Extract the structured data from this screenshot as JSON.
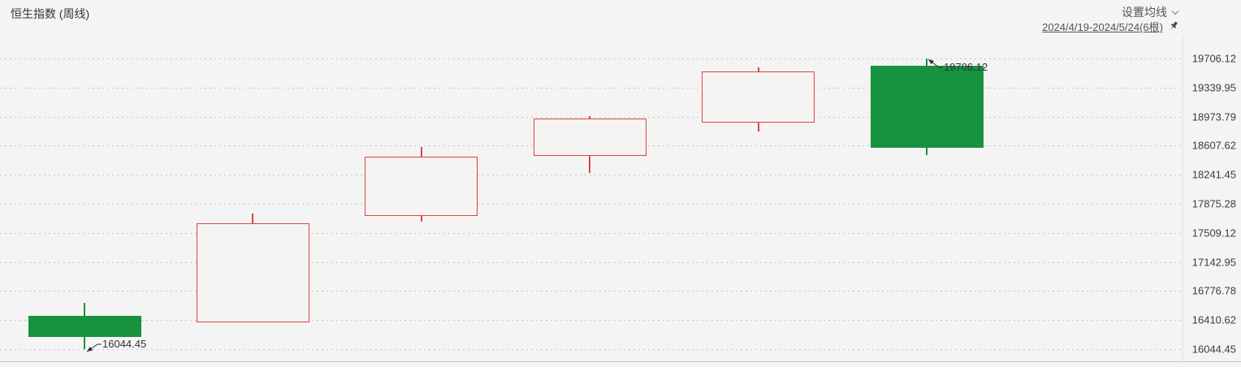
{
  "header": {
    "title": "恒生指数 (周线)",
    "settings_label": "设置均线",
    "date_range": "2024/4/19-2024/5/24(6根)"
  },
  "colors": {
    "background": "#f4f4f4",
    "up_red": "#e0433f",
    "down_green": "#17923e",
    "grid": "#c4c4c4",
    "axis_text": "#3c3c3c",
    "annotation": "#333333"
  },
  "chart_data": {
    "type": "candlestick",
    "title": "恒生指数 (周线)",
    "period": "weekly",
    "range_label": "2024/4/19-2024/5/24(6根)",
    "candle_count": 6,
    "ylim": [
      16044.45,
      19706.12
    ],
    "y_ticks": [
      19706.12,
      19339.95,
      18973.79,
      18607.62,
      18241.45,
      17875.28,
      17509.12,
      17142.95,
      16776.78,
      16410.62,
      16044.45
    ],
    "grid": "dotted-horizontal",
    "legend_position": "none",
    "up_style": "hollow-red",
    "down_style": "filled-green",
    "candles": [
      {
        "open": 16464,
        "close": 16198,
        "high": 16627,
        "low": 16044.45,
        "direction": "down"
      },
      {
        "open": 16382,
        "close": 17630,
        "high": 17752,
        "low": 16382,
        "direction": "up"
      },
      {
        "open": 17722,
        "close": 18469,
        "high": 18591,
        "low": 17650,
        "direction": "up"
      },
      {
        "open": 18479,
        "close": 18949,
        "high": 18980,
        "low": 18264,
        "direction": "up"
      },
      {
        "open": 18898,
        "close": 19542,
        "high": 19594,
        "low": 18786,
        "direction": "up"
      },
      {
        "open": 19614,
        "close": 18581,
        "high": 19706.12,
        "low": 18489,
        "direction": "down"
      }
    ],
    "annotations": [
      {
        "candle": 0,
        "point": "low",
        "label": "16044.45"
      },
      {
        "candle": 5,
        "point": "high",
        "label": "19706.12"
      }
    ]
  }
}
